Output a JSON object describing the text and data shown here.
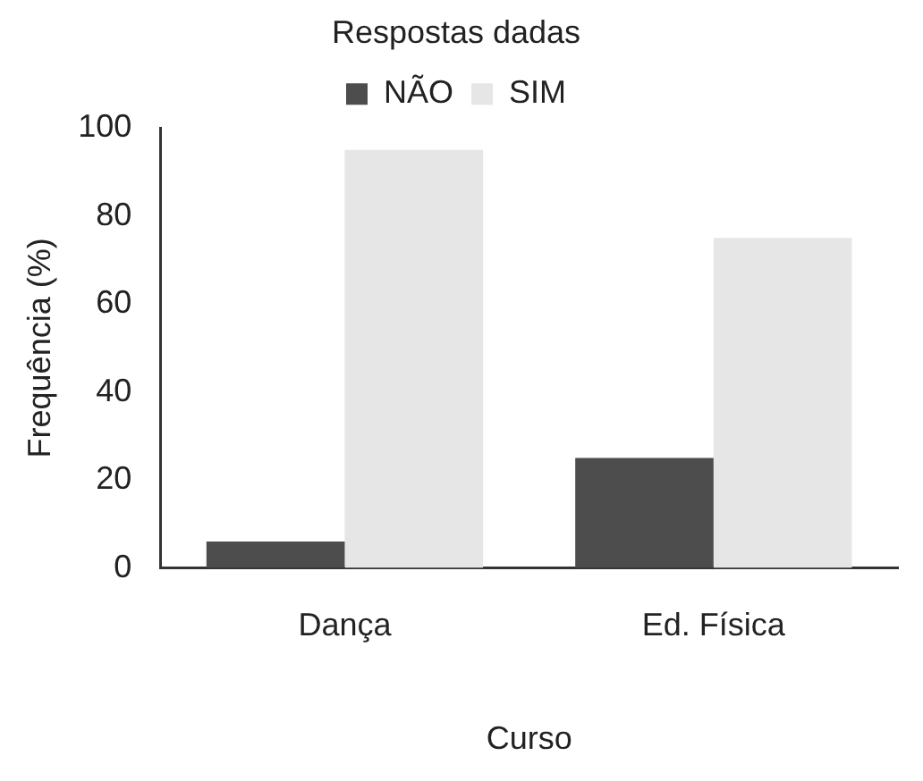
{
  "chart_data": {
    "type": "bar",
    "xlabel": "Curso",
    "ylabel": "Frequência (%)",
    "legend_title": "Respostas dadas",
    "categories": [
      "Dança",
      "Ed. Física"
    ],
    "series": [
      {
        "name": "NÃO",
        "color": "#4d4d4d",
        "values": [
          6,
          25
        ]
      },
      {
        "name": "SIM",
        "color": "#e6e6e6",
        "values": [
          95,
          75
        ]
      }
    ],
    "ylim": [
      0,
      100
    ],
    "yticks": [
      0,
      20,
      40,
      60,
      80,
      100
    ],
    "grid": false,
    "legend": "top"
  }
}
